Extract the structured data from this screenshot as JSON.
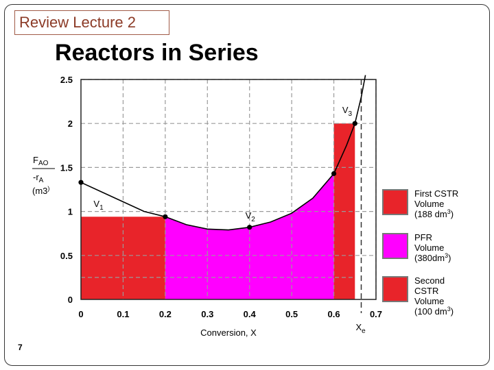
{
  "slide": {
    "tag": "Review Lecture 2",
    "title": "Reactors in Series",
    "page_number": "7"
  },
  "colors": {
    "cstr": "#e8242a",
    "pfr": "#ff00ff",
    "grid": "#9a9a9a",
    "curve": "#000000"
  },
  "chart_data": {
    "type": "area",
    "title": "Reactors in Series",
    "xlabel": "Conversion, X",
    "ylabel_lines": [
      "FAO",
      "-rA",
      "(m3)"
    ],
    "xlim": [
      0,
      0.7
    ],
    "ylim": [
      0,
      2.5
    ],
    "x_ticks": [
      "0",
      "0.1",
      "0.2",
      "0.3",
      "0.4",
      "0.5",
      "0.6",
      "0.7"
    ],
    "y_ticks": [
      "0",
      "0.5",
      "1",
      "1.5",
      "2",
      "2.5"
    ],
    "curve": [
      {
        "x": 0.0,
        "y": 1.33
      },
      {
        "x": 0.05,
        "y": 1.22
      },
      {
        "x": 0.1,
        "y": 1.11
      },
      {
        "x": 0.15,
        "y": 1.0
      },
      {
        "x": 0.2,
        "y": 0.94
      },
      {
        "x": 0.25,
        "y": 0.85
      },
      {
        "x": 0.3,
        "y": 0.8
      },
      {
        "x": 0.35,
        "y": 0.79
      },
      {
        "x": 0.4,
        "y": 0.82
      },
      {
        "x": 0.45,
        "y": 0.88
      },
      {
        "x": 0.5,
        "y": 0.98
      },
      {
        "x": 0.55,
        "y": 1.15
      },
      {
        "x": 0.6,
        "y": 1.43
      },
      {
        "x": 0.63,
        "y": 1.75
      },
      {
        "x": 0.65,
        "y": 2.0
      },
      {
        "x": 0.665,
        "y": 2.3
      },
      {
        "x": 0.675,
        "y": 2.55
      }
    ],
    "points": [
      {
        "x": 0.0,
        "y": 1.33
      },
      {
        "x": 0.2,
        "y": 0.94
      },
      {
        "x": 0.4,
        "y": 0.82
      },
      {
        "x": 0.6,
        "y": 1.43
      },
      {
        "x": 0.65,
        "y": 2.0
      }
    ],
    "point_labels": [
      {
        "text": "V",
        "sub": "1",
        "x": 0.03,
        "y": 1.05
      },
      {
        "text": "V",
        "sub": "2",
        "x": 0.39,
        "y": 0.92
      },
      {
        "text": "V",
        "sub": "3",
        "x": 0.62,
        "y": 2.12
      }
    ],
    "equilibrium": {
      "x": 0.665,
      "label": "X",
      "sub": "e"
    },
    "regions": [
      {
        "name": "First CSTR",
        "type": "cstr",
        "x0": 0.0,
        "x1": 0.2,
        "height": 0.94,
        "volume": "188 dm3"
      },
      {
        "name": "PFR",
        "type": "pfr",
        "x0": 0.2,
        "x1": 0.6,
        "volume": "380dm3"
      },
      {
        "name": "Second CSTR",
        "type": "cstr",
        "x0": 0.6,
        "x1": 0.65,
        "height": 2.0,
        "volume": "100 dm3"
      }
    ],
    "legend": [
      {
        "lines": [
          "First CSTR",
          "Volume",
          "(188 dm3)"
        ],
        "type": "cstr"
      },
      {
        "lines": [
          "PFR",
          "Volume",
          "(380dm3)"
        ],
        "type": "pfr"
      },
      {
        "lines": [
          "Second",
          "CSTR",
          "Volume",
          "(100 dm3)"
        ],
        "type": "cstr"
      }
    ],
    "legend_position": "right"
  }
}
